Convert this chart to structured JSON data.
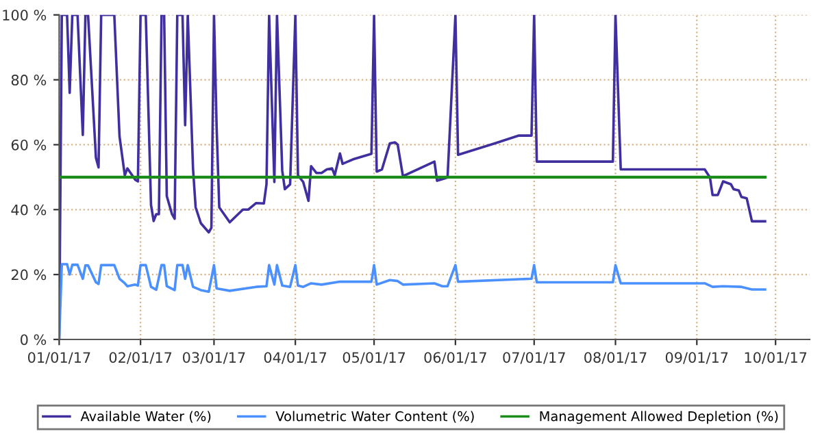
{
  "chart_data": {
    "type": "line",
    "xlim": [
      "2017-01-01",
      "2017-10-14"
    ],
    "xticks": [
      {
        "value": "2017-01-01",
        "label": "01/01/17"
      },
      {
        "value": "2017-02-01",
        "label": "02/01/17"
      },
      {
        "value": "2017-03-01",
        "label": "03/01/17"
      },
      {
        "value": "2017-04-01",
        "label": "04/01/17"
      },
      {
        "value": "2017-05-01",
        "label": "05/01/17"
      },
      {
        "value": "2017-06-01",
        "label": "06/01/17"
      },
      {
        "value": "2017-07-01",
        "label": "07/01/17"
      },
      {
        "value": "2017-08-01",
        "label": "08/01/17"
      },
      {
        "value": "2017-09-01",
        "label": "09/01/17"
      },
      {
        "value": "2017-10-01",
        "label": "10/01/17"
      }
    ],
    "ylim": [
      0,
      100
    ],
    "yticks": [
      {
        "value": 0,
        "label": "0 %"
      },
      {
        "value": 20,
        "label": "20 %"
      },
      {
        "value": 40,
        "label": "40 %"
      },
      {
        "value": 60,
        "label": "60 %"
      },
      {
        "value": 80,
        "label": "80 %"
      },
      {
        "value": 100,
        "label": "100 %"
      }
    ],
    "grid": true,
    "legend": "bottom",
    "marker": "none",
    "line_style": "solid",
    "series": [
      {
        "name": "Available Water (%)",
        "color": "#3f2f9f",
        "x": [
          "2017-01-01",
          "2017-01-02",
          "2017-01-04",
          "2017-01-05",
          "2017-01-06",
          "2017-01-08",
          "2017-01-10",
          "2017-01-11",
          "2017-01-12",
          "2017-01-15",
          "2017-01-16",
          "2017-01-17",
          "2017-01-22",
          "2017-01-24",
          "2017-01-26",
          "2017-01-27",
          "2017-01-30",
          "2017-01-31",
          "2017-02-01",
          "2017-02-03",
          "2017-02-05",
          "2017-02-06",
          "2017-02-07",
          "2017-02-08",
          "2017-02-09",
          "2017-02-10",
          "2017-02-11",
          "2017-02-13",
          "2017-02-14",
          "2017-02-15",
          "2017-02-17",
          "2017-02-18",
          "2017-02-19",
          "2017-02-21",
          "2017-02-22",
          "2017-02-24",
          "2017-02-27",
          "2017-02-28",
          "2017-03-01",
          "2017-03-02",
          "2017-03-03",
          "2017-03-07",
          "2017-03-12",
          "2017-03-14",
          "2017-03-17",
          "2017-03-20",
          "2017-03-21",
          "2017-03-22",
          "2017-03-24",
          "2017-03-25",
          "2017-03-27",
          "2017-03-28",
          "2017-03-30",
          "2017-04-01",
          "2017-04-02",
          "2017-04-04",
          "2017-04-06",
          "2017-04-07",
          "2017-04-09",
          "2017-04-11",
          "2017-04-13",
          "2017-04-15",
          "2017-04-16",
          "2017-04-18",
          "2017-04-19",
          "2017-04-23",
          "2017-04-30",
          "2017-05-01",
          "2017-05-02",
          "2017-05-04",
          "2017-05-07",
          "2017-05-09",
          "2017-05-10",
          "2017-05-12",
          "2017-05-24",
          "2017-05-25",
          "2017-05-27",
          "2017-05-29",
          "2017-06-01",
          "2017-06-02",
          "2017-06-16",
          "2017-06-25",
          "2017-06-30",
          "2017-07-01",
          "2017-07-02",
          "2017-07-31",
          "2017-08-01",
          "2017-08-03",
          "2017-09-04",
          "2017-09-06",
          "2017-09-07",
          "2017-09-09",
          "2017-09-11",
          "2017-09-14",
          "2017-09-15",
          "2017-09-17",
          "2017-09-18",
          "2017-09-20",
          "2017-09-22",
          "2017-09-27"
        ],
        "values": [
          0,
          100,
          100,
          76,
          100,
          100,
          63,
          100,
          100,
          56,
          53,
          100,
          100,
          62.5,
          50.6,
          52.7,
          49.2,
          48.7,
          100,
          100,
          41.4,
          36.5,
          38.6,
          38.6,
          100,
          100,
          44.2,
          38.6,
          37.2,
          100,
          100,
          66,
          100,
          52.7,
          40.7,
          35.8,
          33,
          34.4,
          100,
          65.3,
          40.7,
          36.1,
          40,
          40,
          42,
          41.9,
          47.8,
          100,
          48.5,
          100,
          52,
          46.3,
          47.8,
          100,
          50.6,
          48.5,
          42.7,
          53.4,
          51.3,
          51.3,
          52.4,
          52.7,
          50.6,
          57.3,
          54.1,
          55.5,
          57.2,
          100,
          51.7,
          52.4,
          60.4,
          60.7,
          60,
          50.3,
          54.8,
          48.9,
          49.4,
          49.9,
          100,
          56.9,
          60.4,
          62.8,
          62.8,
          100,
          54.8,
          54.8,
          100,
          52.4,
          52.4,
          49.9,
          44.5,
          44.5,
          48.7,
          47.8,
          46.3,
          45.9,
          43.9,
          43.5,
          36.4,
          36.4
        ]
      },
      {
        "name": "Volumetric Water Content (%)",
        "color": "#4a90ff",
        "x": [
          "2017-01-01",
          "2017-01-02",
          "2017-01-04",
          "2017-01-05",
          "2017-01-06",
          "2017-01-08",
          "2017-01-10",
          "2017-01-11",
          "2017-01-12",
          "2017-01-15",
          "2017-01-16",
          "2017-01-17",
          "2017-01-22",
          "2017-01-24",
          "2017-01-26",
          "2017-01-27",
          "2017-01-30",
          "2017-01-31",
          "2017-02-01",
          "2017-02-03",
          "2017-02-05",
          "2017-02-07",
          "2017-02-09",
          "2017-02-10",
          "2017-02-11",
          "2017-02-14",
          "2017-02-15",
          "2017-02-17",
          "2017-02-18",
          "2017-02-19",
          "2017-02-21",
          "2017-02-24",
          "2017-02-27",
          "2017-03-01",
          "2017-03-02",
          "2017-03-07",
          "2017-03-17",
          "2017-03-21",
          "2017-03-22",
          "2017-03-24",
          "2017-03-25",
          "2017-03-27",
          "2017-03-30",
          "2017-04-01",
          "2017-04-02",
          "2017-04-04",
          "2017-04-07",
          "2017-04-11",
          "2017-04-18",
          "2017-04-30",
          "2017-05-01",
          "2017-05-02",
          "2017-05-07",
          "2017-05-10",
          "2017-05-12",
          "2017-05-24",
          "2017-05-27",
          "2017-05-29",
          "2017-06-01",
          "2017-06-02",
          "2017-06-30",
          "2017-07-01",
          "2017-07-02",
          "2017-07-31",
          "2017-08-01",
          "2017-08-03",
          "2017-09-04",
          "2017-09-07",
          "2017-09-11",
          "2017-09-18",
          "2017-09-22",
          "2017-09-27"
        ],
        "values": [
          0,
          23.2,
          23.2,
          20,
          23,
          23,
          18.7,
          22.8,
          22.8,
          17.6,
          17.1,
          22.9,
          22.9,
          18.7,
          17.3,
          16.4,
          16.9,
          16.6,
          22.9,
          22.9,
          16.2,
          15.3,
          22.9,
          22.9,
          16.4,
          15.2,
          22.9,
          22.9,
          18.7,
          22.9,
          16.2,
          15.2,
          14.7,
          22.9,
          15.7,
          15,
          16.2,
          16.4,
          22.9,
          16.9,
          22.9,
          16.6,
          16.2,
          22.9,
          16.6,
          16.2,
          17.3,
          16.9,
          17.8,
          17.8,
          22.9,
          16.9,
          18.3,
          18,
          16.9,
          17.3,
          16.4,
          16.4,
          22.9,
          17.8,
          18.7,
          22.9,
          17.6,
          17.6,
          22.9,
          17.3,
          17.3,
          16.2,
          16.4,
          16.2,
          15.4,
          15.4
        ]
      },
      {
        "name": "Management Allowed Depletion (%)",
        "color": "#1a8c1a",
        "x": [
          "2017-01-01",
          "2017-09-27"
        ],
        "values": [
          50,
          50
        ]
      }
    ]
  }
}
